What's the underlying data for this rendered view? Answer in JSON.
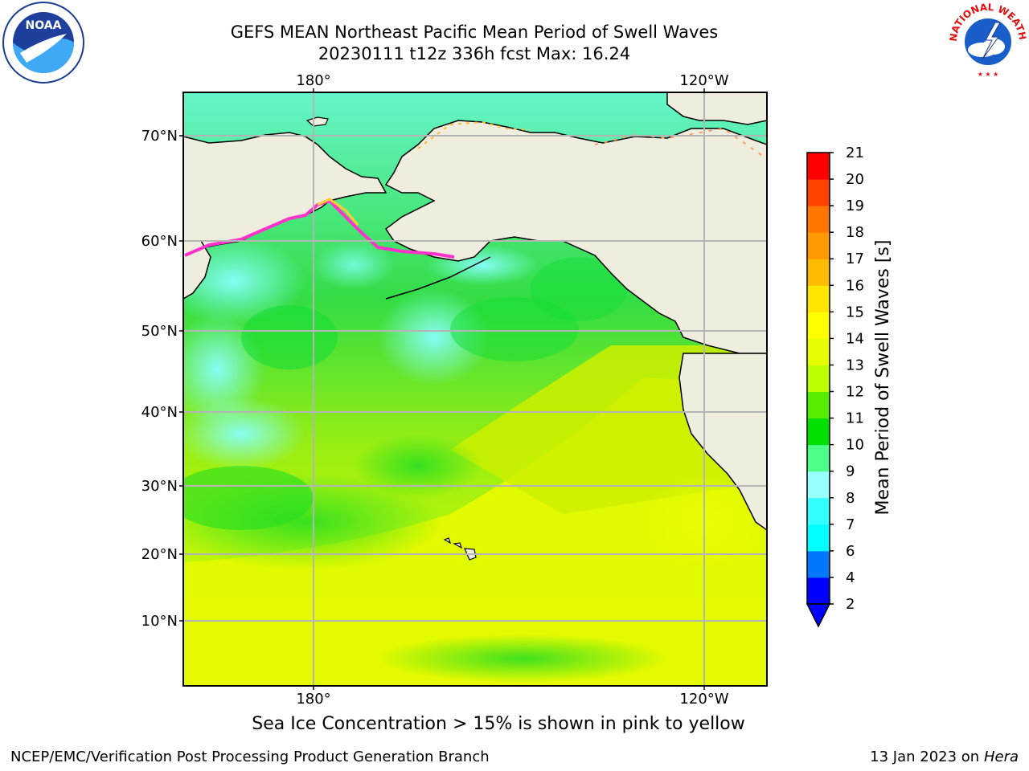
{
  "title": {
    "line1": "GEFS MEAN Northeast Pacific Mean Period of Swell Waves",
    "line2": "20230111 t12z 336h fcst   Max: 16.24"
  },
  "map": {
    "top_lon_labels": [
      "180°",
      "120°W"
    ],
    "bottom_lon_labels": [
      "180°",
      "120°W"
    ],
    "lat_labels": [
      "70°N",
      "60°N",
      "50°N",
      "40°N",
      "30°N",
      "20°N",
      "10°N"
    ]
  },
  "colorbar": {
    "label": "Mean Period of Swell Waves [s]",
    "ticks": [
      "2",
      "4",
      "6",
      "7",
      "8",
      "9",
      "10",
      "11",
      "12",
      "13",
      "14",
      "15",
      "16",
      "17",
      "18",
      "19",
      "20",
      "21"
    ],
    "colors": [
      "#0000ff",
      "#0077ff",
      "#00ffff",
      "#33ffff",
      "#99ffff",
      "#4dff88",
      "#00e000",
      "#55ee00",
      "#bbff00",
      "#e6ff00",
      "#ffff00",
      "#ffe600",
      "#ffbb00",
      "#ff9900",
      "#ff7700",
      "#ff4400",
      "#ff0000"
    ]
  },
  "logos": {
    "noaa_text": "NOAA",
    "nws_text": "NATIONAL WEATHER SERVICE"
  },
  "caption": "Sea Ice Concentration > 15% is shown in pink to yellow",
  "credit": "NCEP/EMC/Verification Post Processing Product Generation Branch",
  "stamp": {
    "date": "13 Jan 2023 on",
    "machine": "Hera"
  }
}
